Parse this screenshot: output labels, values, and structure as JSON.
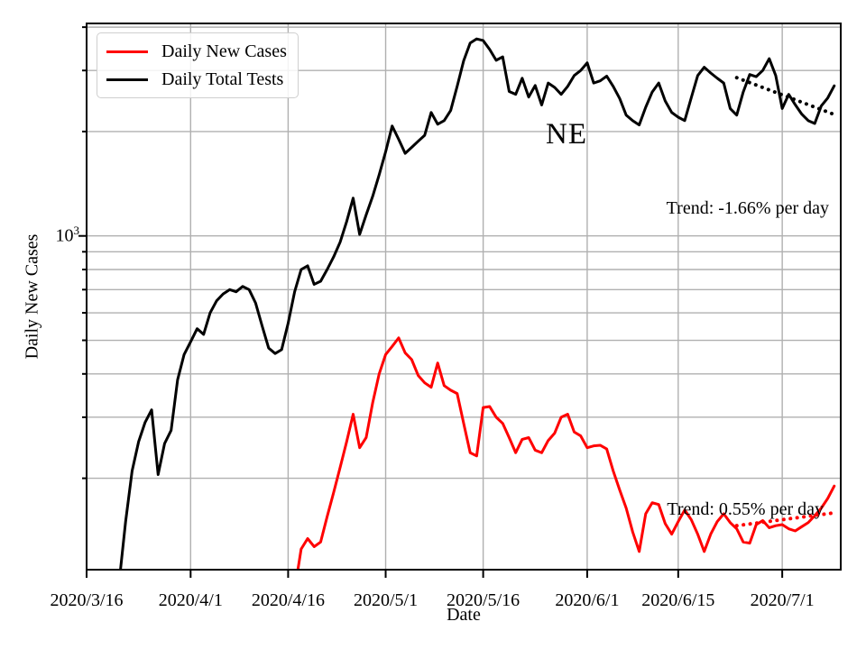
{
  "chart_data": {
    "type": "line",
    "state_annotation": "NE",
    "xlabel": "Date",
    "ylabel": "Daily New Cases",
    "y_scale": "log",
    "ylim": [
      109,
      4100
    ],
    "x_span_days": 116,
    "x_axis_start": "2020/3/16",
    "y_tick_label": {
      "base": "10",
      "exp": "3"
    },
    "y_major_gridlines": [
      1000
    ],
    "y_minor_gridlines": [
      200,
      300,
      400,
      500,
      600,
      700,
      800,
      900,
      2000,
      3000,
      4000
    ],
    "grid_color": "#b0b0b0",
    "x_ticks": [
      {
        "label": "2020/3/16",
        "date": "3/16"
      },
      {
        "label": "2020/4/1",
        "date": "4/1"
      },
      {
        "label": "2020/4/16",
        "date": "4/16"
      },
      {
        "label": "2020/5/1",
        "date": "5/1"
      },
      {
        "label": "2020/5/16",
        "date": "5/16"
      },
      {
        "label": "2020/6/1",
        "date": "6/1"
      },
      {
        "label": "2020/6/15",
        "date": "6/15"
      },
      {
        "label": "2020/7/1",
        "date": "7/1"
      }
    ],
    "series": [
      {
        "name": "Daily New Cases",
        "color": "#ff0000",
        "start_date": "4/17",
        "values": [
          95,
          125,
          134,
          127,
          131,
          155,
          182,
          215,
          255,
          306,
          245,
          262,
          330,
          400,
          455,
          480,
          508,
          460,
          440,
          396,
          377,
          366,
          430,
          370,
          359,
          351,
          288,
          237,
          232,
          320,
          322,
          300,
          288,
          262,
          237,
          259,
          262,
          241,
          237,
          257,
          270,
          300,
          306,
          272,
          265,
          245,
          248,
          249,
          243,
          210,
          185,
          164,
          140,
          123,
          158,
          170,
          168,
          148,
          138,
          150,
          162,
          152,
          138,
          123,
          138,
          150,
          158,
          149,
          143,
          131,
          130,
          147,
          151,
          144,
          146,
          147,
          143,
          141,
          145,
          149,
          156,
          164,
          175,
          190
        ]
      },
      {
        "name": "Daily Total Tests",
        "color": "#000000",
        "start_date": "3/21",
        "values": [
          100,
          150,
          210,
          255,
          290,
          315,
          205,
          252,
          275,
          385,
          455,
          495,
          540,
          520,
          600,
          650,
          680,
          700,
          690,
          715,
          700,
          640,
          550,
          475,
          458,
          470,
          560,
          690,
          800,
          820,
          725,
          740,
          800,
          870,
          960,
          1100,
          1285,
          1010,
          1150,
          1300,
          1500,
          1750,
          2075,
          1900,
          1730,
          1800,
          1875,
          1950,
          2270,
          2100,
          2150,
          2300,
          2700,
          3200,
          3600,
          3700,
          3660,
          3450,
          3210,
          3285,
          2610,
          2560,
          2850,
          2515,
          2715,
          2385,
          2760,
          2680,
          2560,
          2700,
          2900,
          3000,
          3155,
          2760,
          2800,
          2890,
          2700,
          2490,
          2230,
          2150,
          2090,
          2350,
          2600,
          2760,
          2450,
          2270,
          2200,
          2150,
          2500,
          2900,
          3065,
          2950,
          2850,
          2760,
          2330,
          2230,
          2600,
          2920,
          2880,
          3000,
          3245,
          2900,
          2330,
          2560,
          2390,
          2245,
          2150,
          2110,
          2370,
          2500,
          2710
        ]
      }
    ],
    "trend_lines": [
      {
        "series": "Daily Total Tests",
        "label": "Trend: -1.66% per day",
        "color": "#000000",
        "start_date": "6/24",
        "end_date": "7/9",
        "start_value": 2860,
        "end_value": 2240
      },
      {
        "series": "Daily New Cases",
        "label": "Trend: 0.55% per day",
        "color": "#ff0000",
        "start_date": "6/24",
        "end_date": "7/9",
        "start_value": 146,
        "end_value": 159
      }
    ],
    "legend": {
      "items": [
        {
          "label": "Daily New Cases",
          "color": "#ff0000"
        },
        {
          "label": "Daily Total Tests",
          "color": "#000000"
        }
      ]
    }
  }
}
